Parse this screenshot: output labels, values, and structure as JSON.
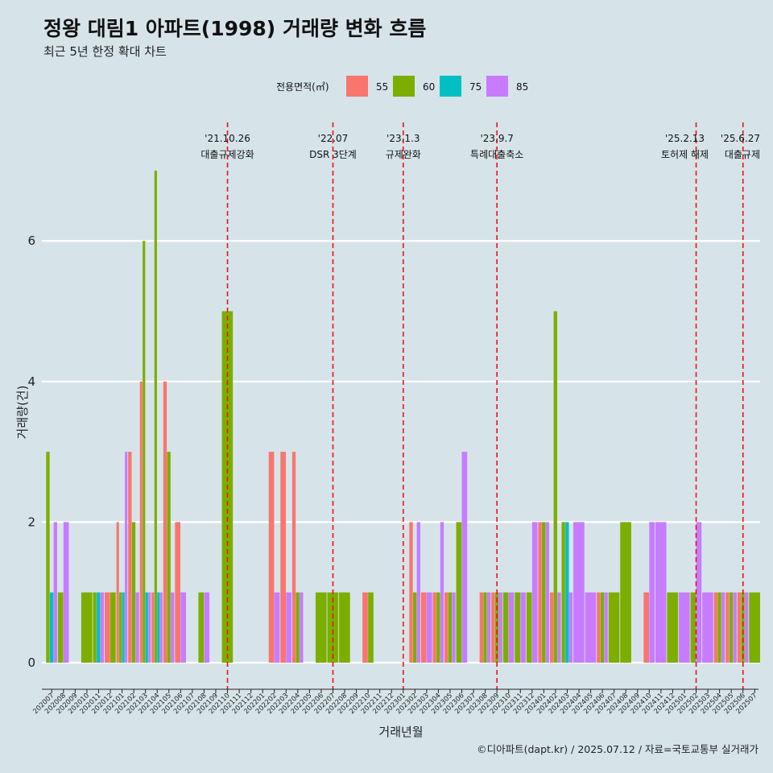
{
  "chart_data": {
    "type": "bar",
    "title": "정왕 대림1 아파트(1998) 거래량 변화 흐름",
    "subtitle": "최근 5년 한정 확대 차트",
    "xlabel": "거래년월",
    "ylabel": "거래량(건)",
    "ylim": [
      0,
      7.5
    ],
    "yticks": [
      0,
      2,
      4,
      6
    ],
    "grid": true,
    "legend": {
      "title": "전용면적(㎡)",
      "position": "top",
      "entries": [
        "55",
        "60",
        "75",
        "85"
      ]
    },
    "colors": {
      "55": "#f8766d",
      "60": "#7cae00",
      "75": "#00bfc4",
      "85": "#c77cff"
    },
    "categories": [
      "202007",
      "202008",
      "202009",
      "202010",
      "202011",
      "202012",
      "202101",
      "202102",
      "202103",
      "202104",
      "202105",
      "202106",
      "202107",
      "202108",
      "202109",
      "202110",
      "202111",
      "202112",
      "202201",
      "202202",
      "202203",
      "202204",
      "202205",
      "202206",
      "202207",
      "202208",
      "202209",
      "202210",
      "202211",
      "202212",
      "202301",
      "202302",
      "202303",
      "202304",
      "202305",
      "202306",
      "202307",
      "202308",
      "202309",
      "202310",
      "202311",
      "202312",
      "202401",
      "202402",
      "202403",
      "202404",
      "202405",
      "202406",
      "202407",
      "202408",
      "202409",
      "202410",
      "202411",
      "202412",
      "202501",
      "202502",
      "202503",
      "202504",
      "202505",
      "202506",
      "202507"
    ],
    "series": [
      {
        "name": "55",
        "values": [
          0,
          0,
          0,
          0,
          0,
          1,
          2,
          3,
          4,
          1,
          4,
          2,
          0,
          0,
          0,
          0,
          0,
          0,
          0,
          3,
          3,
          3,
          0,
          0,
          0,
          0,
          0,
          1,
          0,
          0,
          0,
          2,
          1,
          1,
          1,
          0,
          0,
          1,
          1,
          0,
          0,
          0,
          2,
          1,
          0,
          0,
          0,
          1,
          0,
          0,
          0,
          1,
          0,
          0,
          0,
          0,
          0,
          1,
          1,
          1,
          0
        ]
      },
      {
        "name": "60",
        "values": [
          3,
          1,
          0,
          1,
          1,
          1,
          1,
          2,
          6,
          7,
          3,
          0,
          0,
          1,
          0,
          5,
          0,
          0,
          0,
          0,
          0,
          1,
          0,
          1,
          1,
          1,
          0,
          1,
          0,
          0,
          0,
          1,
          0,
          1,
          1,
          2,
          0,
          1,
          1,
          1,
          1,
          1,
          2,
          5,
          2,
          0,
          0,
          1,
          1,
          2,
          0,
          0,
          0,
          1,
          0,
          1,
          0,
          1,
          1,
          1,
          1
        ]
      },
      {
        "name": "75",
        "values": [
          1,
          0,
          0,
          0,
          1,
          0,
          1,
          0,
          1,
          1,
          0,
          0,
          0,
          0,
          0,
          0,
          0,
          0,
          0,
          0,
          0,
          0,
          0,
          0,
          0,
          0,
          0,
          0,
          0,
          0,
          0,
          0,
          0,
          0,
          0,
          0,
          0,
          0,
          0,
          0,
          0,
          0,
          0,
          0,
          2,
          0,
          0,
          0,
          0,
          0,
          0,
          0,
          0,
          0,
          0,
          0,
          0,
          0,
          0,
          0,
          0
        ]
      },
      {
        "name": "85",
        "values": [
          2,
          2,
          0,
          0,
          1,
          0,
          3,
          1,
          1,
          1,
          1,
          1,
          0,
          1,
          0,
          0,
          0,
          0,
          0,
          1,
          1,
          1,
          0,
          0,
          0,
          0,
          0,
          0,
          0,
          0,
          0,
          2,
          1,
          2,
          1,
          3,
          0,
          1,
          1,
          1,
          1,
          2,
          2,
          1,
          1,
          2,
          1,
          1,
          0,
          0,
          0,
          2,
          2,
          0,
          1,
          2,
          1,
          1,
          1,
          1,
          0
        ]
      }
    ],
    "events": [
      {
        "date": "'21.10.26",
        "label": "대출규제강화",
        "x": "202110"
      },
      {
        "date": "'22.07",
        "label": "DSR 3단계",
        "x": "202207"
      },
      {
        "date": "'23.1.3",
        "label": "규제완화",
        "x": "202301"
      },
      {
        "date": "'23.9.7",
        "label": "특례대출축소",
        "x": "202309"
      },
      {
        "date": "'25.2.13",
        "label": "토허제 해제",
        "x": "202502"
      },
      {
        "date": "'25.6.27",
        "label": "대출규제",
        "x": "202506"
      }
    ],
    "caption": "©디아파트(dapt.kr) / 2025.07.12 / 자료=국토교통부 실거래가"
  }
}
